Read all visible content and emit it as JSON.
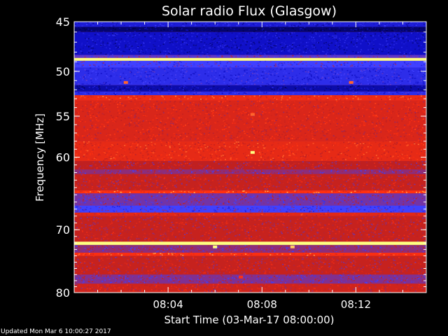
{
  "footer": {
    "updated": "Updated Mon Mar  6 10:00:27 2017"
  },
  "chart_data": {
    "type": "heatmap",
    "title": "Solar radio Flux (Glasgow)",
    "xlabel": "Start Time (03-Mar-17 08:00:00)",
    "ylabel": "Frequency [MHz]",
    "x_unit": "minutes after 08:00",
    "xlim": [
      0,
      15
    ],
    "ylim": [
      45,
      80
    ],
    "y_scale": "log",
    "y_inverted": true,
    "x_ticks": [
      {
        "value": 4,
        "label": "08:04"
      },
      {
        "value": 8,
        "label": "08:08"
      },
      {
        "value": 12,
        "label": "08:12"
      }
    ],
    "y_ticks": [
      {
        "value": 45,
        "label": "45"
      },
      {
        "value": 50,
        "label": "50"
      },
      {
        "value": 55,
        "label": "55"
      },
      {
        "value": 60,
        "label": "60"
      },
      {
        "value": 70,
        "label": "70"
      },
      {
        "value": 80,
        "label": "80"
      }
    ],
    "colormap": [
      "#000050",
      "#1010c8",
      "#4040ff",
      "#c02020",
      "#ff3010",
      "#ffff80"
    ],
    "bands": [
      {
        "from": 45.0,
        "to": 45.5,
        "level": 0.25
      },
      {
        "from": 45.5,
        "to": 46.0,
        "level": 0.05
      },
      {
        "from": 46.0,
        "to": 48.3,
        "level": 0.2
      },
      {
        "from": 48.3,
        "to": 48.6,
        "level": 0.45
      },
      {
        "from": 48.6,
        "to": 48.9,
        "level": 1.0
      },
      {
        "from": 48.9,
        "to": 49.6,
        "level": 0.4
      },
      {
        "from": 49.6,
        "to": 51.5,
        "level": 0.32
      },
      {
        "from": 51.5,
        "to": 52.2,
        "level": 0.15
      },
      {
        "from": 52.2,
        "to": 52.6,
        "level": 0.32
      },
      {
        "from": 52.6,
        "to": 53.2,
        "level": 0.75
      },
      {
        "from": 53.2,
        "to": 58.0,
        "level": 0.68
      },
      {
        "from": 58.0,
        "to": 60.5,
        "level": 0.72
      },
      {
        "from": 60.5,
        "to": 61.6,
        "level": 0.6
      },
      {
        "from": 61.6,
        "to": 62.2,
        "level": 0.52
      },
      {
        "from": 62.2,
        "to": 64.4,
        "level": 0.62
      },
      {
        "from": 64.4,
        "to": 64.8,
        "level": 0.8
      },
      {
        "from": 64.8,
        "to": 66.5,
        "level": 0.48
      },
      {
        "from": 66.5,
        "to": 67.5,
        "level": 0.4
      },
      {
        "from": 67.5,
        "to": 68.0,
        "level": 0.7
      },
      {
        "from": 68.0,
        "to": 71.8,
        "level": 0.62
      },
      {
        "from": 71.8,
        "to": 72.3,
        "level": 1.0
      },
      {
        "from": 72.3,
        "to": 73.5,
        "level": 0.52
      },
      {
        "from": 73.5,
        "to": 74.0,
        "level": 0.78
      },
      {
        "from": 74.0,
        "to": 77.0,
        "level": 0.62
      },
      {
        "from": 77.0,
        "to": 78.5,
        "level": 0.5
      },
      {
        "from": 78.5,
        "to": 80.0,
        "level": 0.65
      }
    ],
    "spots": [
      {
        "time": 2.2,
        "freq": 51.2,
        "level": 0.85
      },
      {
        "time": 11.8,
        "freq": 51.2,
        "level": 0.85
      },
      {
        "time": 7.6,
        "freq": 54.8,
        "level": 0.85
      },
      {
        "time": 7.6,
        "freq": 59.4,
        "level": 1.0
      },
      {
        "time": 6.0,
        "freq": 72.6,
        "level": 1.0
      },
      {
        "time": 9.3,
        "freq": 72.6,
        "level": 0.95
      },
      {
        "time": 7.1,
        "freq": 77.4,
        "level": 0.8
      }
    ],
    "grid": false
  }
}
